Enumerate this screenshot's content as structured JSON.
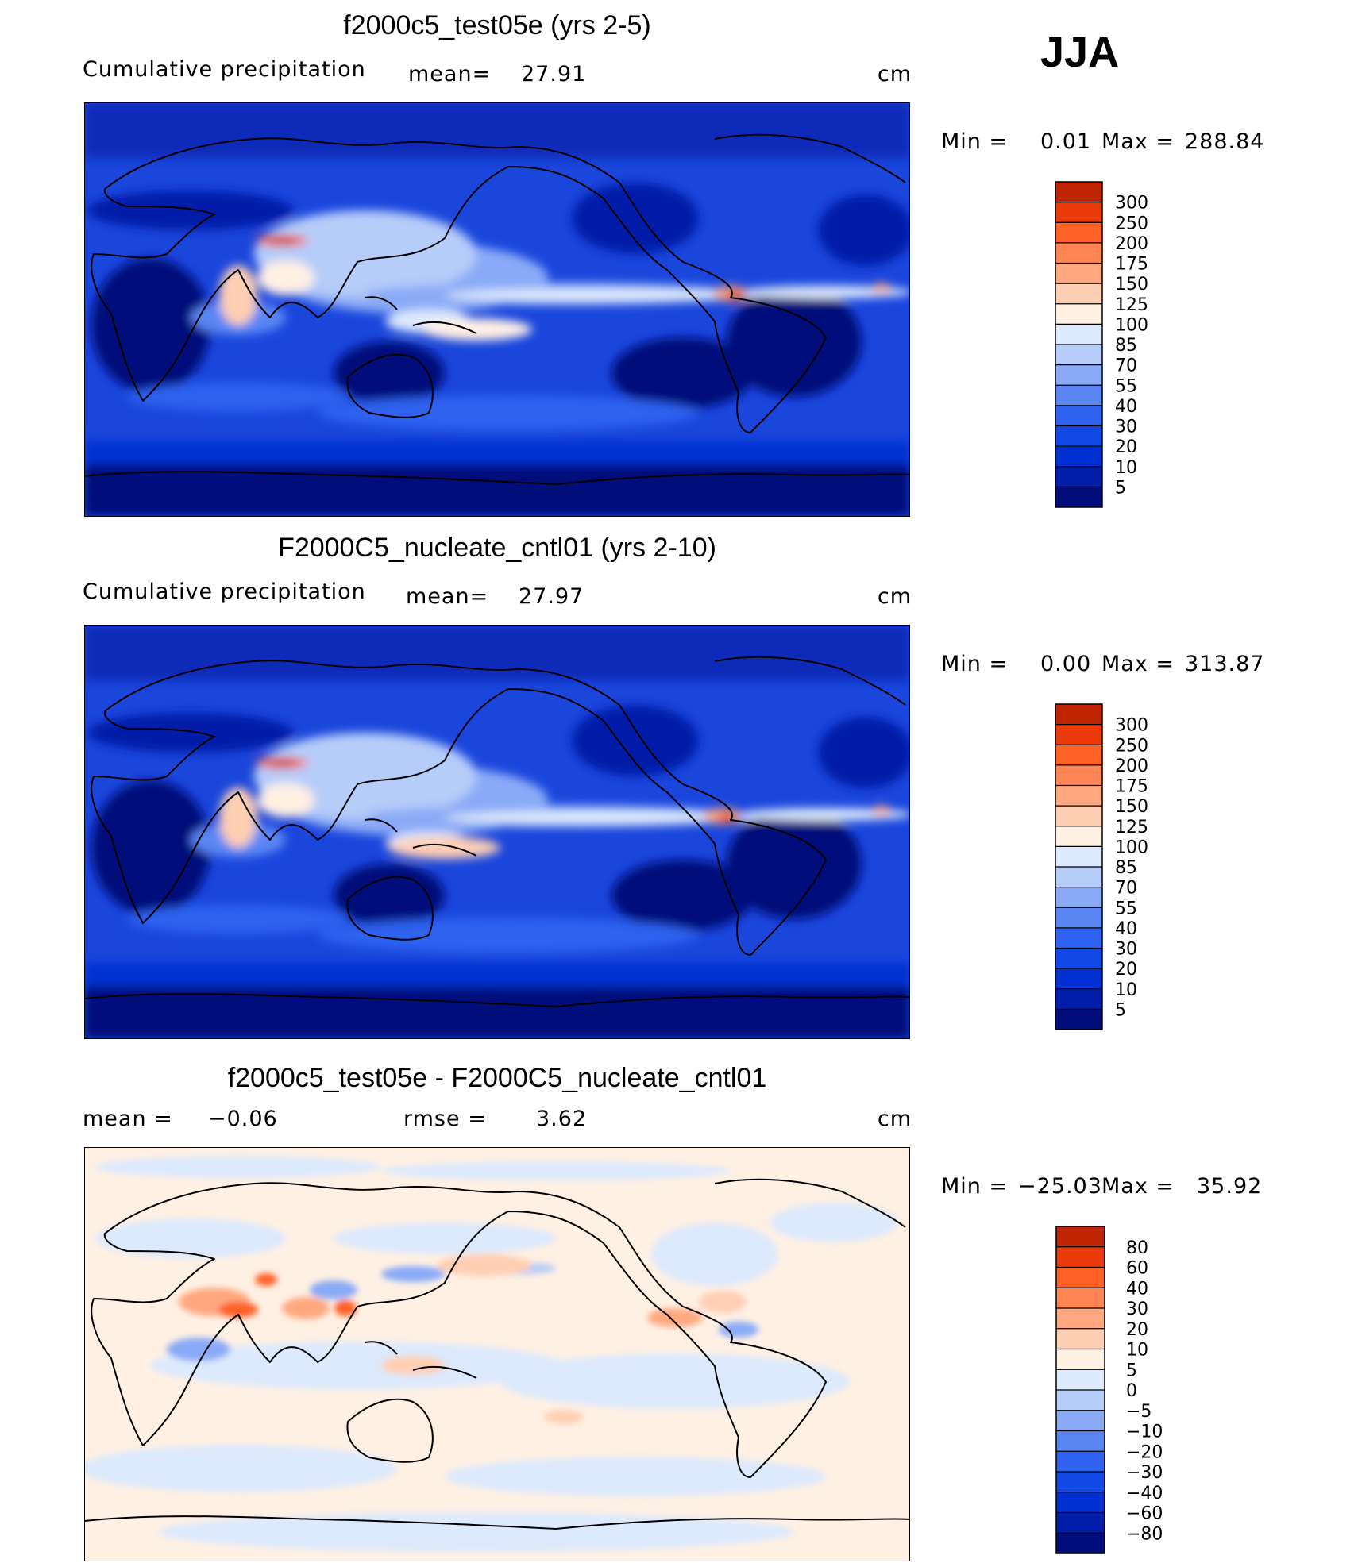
{
  "season": "JJA",
  "palettes": {
    "precip": [
      "#000d7a",
      "#001ea9",
      "#0030d1",
      "#1148e6",
      "#2f62ef",
      "#5a86f4",
      "#8aaaf7",
      "#b6ccf9",
      "#dde9fc",
      "#fff0e4",
      "#ffcfb4",
      "#ffa880",
      "#ff8654",
      "#ff6127",
      "#ec3b0b",
      "#bf2403",
      "#8d0e01"
    ],
    "diff": [
      "#000d7a",
      "#001ea9",
      "#0030d1",
      "#1148e6",
      "#2f62ef",
      "#5a86f4",
      "#8aaaf7",
      "#b6ccf9",
      "#dde9fc",
      "#fff0e4",
      "#ffcfb4",
      "#ffa880",
      "#ff8654",
      "#ff6127",
      "#ec3b0b",
      "#bf2403",
      "#8d0e01"
    ]
  },
  "panels": [
    {
      "title": "f2000c5_test05e (yrs 2-5)",
      "left_label": "Cumulative precipitation",
      "stat_label": "mean=",
      "stat_value": "27.91",
      "stat2_label": "",
      "stat2_value": "",
      "units": "cm",
      "min_label": "Min =",
      "min_value": "0.01",
      "max_label": "Max =",
      "max_value": "288.84",
      "colorbar_levels": [
        "300",
        "250",
        "200",
        "175",
        "150",
        "125",
        "100",
        "85",
        "70",
        "55",
        "40",
        "30",
        "20",
        "10",
        "5"
      ]
    },
    {
      "title": "F2000C5_nucleate_cntl01 (yrs 2-10)",
      "left_label": "Cumulative precipitation",
      "stat_label": "mean=",
      "stat_value": "27.97",
      "stat2_label": "",
      "stat2_value": "",
      "units": "cm",
      "min_label": "Min =",
      "min_value": "0.00",
      "max_label": "Max =",
      "max_value": "313.87",
      "colorbar_levels": [
        "300",
        "250",
        "200",
        "175",
        "150",
        "125",
        "100",
        "85",
        "70",
        "55",
        "40",
        "30",
        "20",
        "10",
        "5"
      ]
    },
    {
      "title": "f2000c5_test05e - F2000C5_nucleate_cntl01",
      "left_label": "mean =",
      "stat_label": "",
      "stat_value": "−0.06",
      "stat2_label": "rmse =",
      "stat2_value": "3.62",
      "units": "cm",
      "min_label": "Min =",
      "min_value": "−25.03",
      "max_label": "Max =",
      "max_value": "35.92",
      "colorbar_levels": [
        "80",
        "60",
        "40",
        "30",
        "20",
        "10",
        "5",
        "0",
        "−5",
        "−10",
        "−20",
        "−30",
        "−40",
        "−60",
        "−80"
      ]
    }
  ],
  "chart_data": [
    {
      "type": "heatmap",
      "title": "f2000c5_test05e (yrs 2-5)",
      "subtitle": "Cumulative precipitation",
      "units": "cm",
      "mean": 27.91,
      "min": 0.01,
      "max": 288.84,
      "contour_levels": [
        5,
        10,
        20,
        30,
        40,
        55,
        70,
        85,
        100,
        125,
        150,
        175,
        200,
        250,
        300
      ],
      "map": "global cylindrical equidistant, centered on 180°"
    },
    {
      "type": "heatmap",
      "title": "F2000C5_nucleate_cntl01 (yrs 2-10)",
      "subtitle": "Cumulative precipitation",
      "units": "cm",
      "mean": 27.97,
      "min": 0.0,
      "max": 313.87,
      "contour_levels": [
        5,
        10,
        20,
        30,
        40,
        55,
        70,
        85,
        100,
        125,
        150,
        175,
        200,
        250,
        300
      ],
      "map": "global cylindrical equidistant, centered on 180°"
    },
    {
      "type": "heatmap",
      "title": "f2000c5_test05e - F2000C5_nucleate_cntl01",
      "units": "cm",
      "mean": -0.06,
      "rmse": 3.62,
      "min": -25.03,
      "max": 35.92,
      "contour_levels": [
        -80,
        -60,
        -40,
        -30,
        -20,
        -10,
        -5,
        0,
        5,
        10,
        20,
        30,
        40,
        60,
        80
      ],
      "map": "global cylindrical equidistant, centered on 180°"
    }
  ]
}
